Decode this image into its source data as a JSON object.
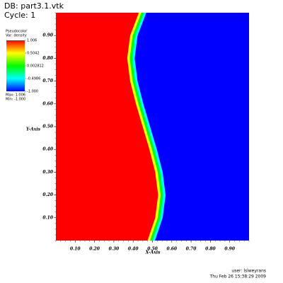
{
  "chart_data": {
    "type": "pseudocolor",
    "title": "DB: part3.1.vtk",
    "subtitle": "Cycle: 1",
    "xlabel": "X-Axis",
    "ylabel": "Y-Axis",
    "xlim": [
      0,
      1
    ],
    "ylim": [
      0,
      1
    ],
    "xticks": [
      {
        "value": 0.1,
        "label": "0.10"
      },
      {
        "value": 0.2,
        "label": "0.20"
      },
      {
        "value": 0.3,
        "label": "0.30"
      },
      {
        "value": 0.4,
        "label": "0.40"
      },
      {
        "value": 0.5,
        "label": "0.50"
      },
      {
        "value": 0.6,
        "label": "0.60"
      },
      {
        "value": 0.7,
        "label": "0.70"
      },
      {
        "value": 0.8,
        "label": "0.80"
      },
      {
        "value": 0.9,
        "label": "0.90"
      }
    ],
    "yticks": [
      {
        "value": 0.1,
        "label": "0.10"
      },
      {
        "value": 0.2,
        "label": "0.20"
      },
      {
        "value": 0.3,
        "label": "0.30"
      },
      {
        "value": 0.4,
        "label": "0.40"
      },
      {
        "value": 0.5,
        "label": "0.50"
      },
      {
        "value": 0.6,
        "label": "0.60"
      },
      {
        "value": 0.7,
        "label": "0.70"
      },
      {
        "value": 0.8,
        "label": "0.80"
      },
      {
        "value": 0.9,
        "label": "0.90"
      }
    ],
    "series": [
      {
        "x": [
          0.5,
          0.54,
          0.555,
          0.54,
          0.51,
          0.475,
          0.44,
          0.41,
          0.395,
          0.41,
          0.455
        ],
        "values": [
          0,
          0.1,
          0.2,
          0.3,
          0.4,
          0.5,
          0.6,
          0.7,
          0.8,
          0.9,
          1
        ]
      }
    ],
    "colorbar": {
      "title": "Pseudocolor",
      "variable": "Var: density",
      "ticks": [
        1.006,
        0.5042,
        0.002812,
        -0.4986,
        {
          "value": -1,
          "label": "-1.000"
        }
      ],
      "colors": [
        "#ff0000",
        "#ffff00",
        "#00ff00",
        "#00ffff",
        "#0000ff"
      ],
      "max_label": "Max: 1.006",
      "min_label": "Min: -1.000"
    },
    "user": "user: lslweyrans",
    "date": "Thu Feb 26 15:38:29 2009"
  }
}
